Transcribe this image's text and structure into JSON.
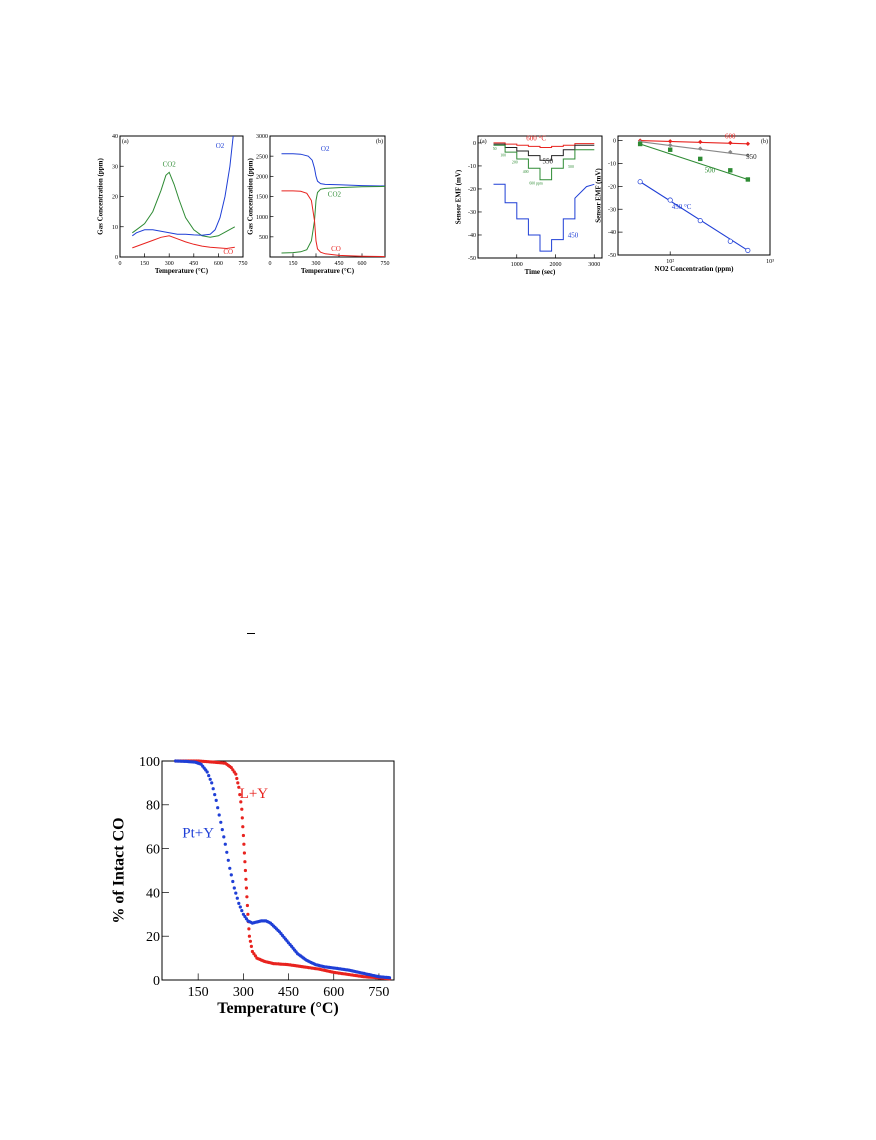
{
  "colors": {
    "red": "#e8231f",
    "blue": "#1f3fd6",
    "green": "#2e8b34",
    "black": "#222222",
    "gray": "#888888"
  },
  "chart_data": [
    {
      "id": "fig1a",
      "panel_label": "(a)",
      "type": "line",
      "xlabel": "Temperature (°C)",
      "ylabel": "Gas Concentration (ppm)",
      "xlim": [
        0,
        750
      ],
      "ylim": [
        0,
        40
      ],
      "xticks": [
        0,
        150,
        300,
        450,
        600,
        750
      ],
      "yticks": [
        0,
        10,
        20,
        30,
        40
      ],
      "series": [
        {
          "name": "CO2",
          "color": "#2e8b34",
          "x": [
            75,
            100,
            150,
            200,
            250,
            280,
            300,
            330,
            360,
            400,
            450,
            500,
            550,
            600,
            650,
            700
          ],
          "y": [
            8,
            9,
            11,
            15,
            22,
            27,
            28,
            24,
            19,
            13,
            9,
            7,
            6.5,
            7,
            8.5,
            10
          ]
        },
        {
          "name": "O2",
          "color": "#1f3fd6",
          "x": [
            75,
            100,
            150,
            200,
            250,
            300,
            350,
            400,
            450,
            500,
            550,
            580,
            610,
            640,
            670,
            690
          ],
          "y": [
            7,
            8,
            9,
            9,
            8.5,
            8,
            7.5,
            7.5,
            7.3,
            7.2,
            7.5,
            9,
            13,
            20,
            30,
            40
          ]
        },
        {
          "name": "CO",
          "color": "#e8231f",
          "x": [
            75,
            100,
            150,
            200,
            250,
            300,
            350,
            400,
            450,
            500,
            550,
            600,
            650,
            700
          ],
          "y": [
            3,
            3.5,
            4.5,
            5.5,
            6.5,
            7,
            6,
            5,
            4.2,
            3.6,
            3.2,
            3,
            2.8,
            3.2
          ]
        }
      ],
      "annotations": [
        {
          "text": "CO2",
          "x": 300,
          "y": 30,
          "color": "#2e8b34"
        },
        {
          "text": "O2",
          "x": 610,
          "y": 36,
          "color": "#1f3fd6"
        },
        {
          "text": "CO",
          "x": 660,
          "y": 1,
          "color": "#e8231f"
        }
      ]
    },
    {
      "id": "fig1b",
      "panel_label": "(b)",
      "type": "line",
      "xlabel": "Temperature (°C)",
      "ylabel": "Gas Concentration (ppm)",
      "xlim": [
        0,
        750
      ],
      "ylim": [
        0,
        3000
      ],
      "xticks": [
        0,
        150,
        300,
        450,
        600,
        750
      ],
      "yticks": [
        500,
        1000,
        1500,
        2000,
        2500,
        3000
      ],
      "series": [
        {
          "name": "O2",
          "color": "#1f3fd6",
          "x": [
            75,
            150,
            200,
            250,
            275,
            290,
            300,
            310,
            330,
            360,
            450,
            600,
            750
          ],
          "y": [
            2560,
            2560,
            2550,
            2500,
            2400,
            2200,
            2000,
            1880,
            1820,
            1800,
            1790,
            1770,
            1760
          ]
        },
        {
          "name": "CO2",
          "color": "#2e8b34",
          "x": [
            75,
            150,
            200,
            240,
            270,
            290,
            300,
            310,
            330,
            360,
            450,
            600,
            750
          ],
          "y": [
            100,
            110,
            130,
            180,
            400,
            900,
            1400,
            1600,
            1680,
            1700,
            1720,
            1740,
            1750
          ]
        },
        {
          "name": "CO",
          "color": "#e8231f",
          "x": [
            75,
            150,
            200,
            240,
            270,
            290,
            300,
            310,
            330,
            360,
            450,
            600,
            750
          ],
          "y": [
            1640,
            1640,
            1630,
            1580,
            1400,
            900,
            400,
            200,
            120,
            80,
            40,
            20,
            10
          ]
        }
      ],
      "annotations": [
        {
          "text": "O2",
          "x": 360,
          "y": 2630,
          "color": "#1f3fd6"
        },
        {
          "text": "CO2",
          "x": 420,
          "y": 1500,
          "color": "#2e8b34"
        },
        {
          "text": "CO",
          "x": 430,
          "y": 150,
          "color": "#e8231f"
        }
      ]
    },
    {
      "id": "fig2a",
      "panel_label": "(a)",
      "type": "line",
      "xlabel": "Time (sec)",
      "ylabel": "Sensor EMF (mV)",
      "xlim": [
        0,
        3200
      ],
      "ylim": [
        -50,
        3
      ],
      "xticks": [
        1000,
        2000,
        3000
      ],
      "yticks": [
        0,
        -10,
        -20,
        -30,
        -40,
        -50
      ],
      "series": [
        {
          "name": "600 °C",
          "color": "#e8231f",
          "x": [
            400,
            700,
            700,
            1000,
            1000,
            1300,
            1300,
            1600,
            1600,
            1900,
            1900,
            2200,
            2200,
            2500,
            2500,
            3000
          ],
          "y": [
            0,
            0,
            -0.5,
            -0.5,
            -1,
            -1,
            -1.5,
            -1.5,
            -2,
            -2,
            -1.5,
            -1.5,
            -1,
            -1,
            -0.3,
            -0.3
          ]
        },
        {
          "name": "550",
          "color": "#222222",
          "x": [
            400,
            700,
            700,
            1000,
            1000,
            1300,
            1300,
            1600,
            1600,
            1900,
            1900,
            2200,
            2200,
            2500,
            2500,
            3000
          ],
          "y": [
            -0.5,
            -0.5,
            -2,
            -2,
            -3.5,
            -3.5,
            -5.5,
            -5.5,
            -7.5,
            -7.5,
            -5.5,
            -5.5,
            -3,
            -3,
            -1,
            -1
          ]
        },
        {
          "name": "500",
          "color": "#2e8b34",
          "x": [
            400,
            700,
            700,
            1000,
            1000,
            1300,
            1300,
            1600,
            1600,
            1900,
            1900,
            2200,
            2200,
            2500,
            2500,
            3000
          ],
          "y": [
            -1,
            -1,
            -4,
            -4,
            -7,
            -7,
            -11,
            -11,
            -16,
            -16,
            -11,
            -11,
            -7,
            -7,
            -3,
            -3
          ]
        },
        {
          "name": "450",
          "color": "#1f3fd6",
          "x": [
            400,
            700,
            700,
            1000,
            1000,
            1300,
            1300,
            1600,
            1600,
            1900,
            1900,
            2200,
            2200,
            2500,
            2500,
            2800,
            3000
          ],
          "y": [
            -18,
            -18,
            -26,
            -26,
            -33,
            -33,
            -40,
            -40,
            -47,
            -47,
            -42,
            -42,
            -33,
            -33,
            -24,
            -19,
            -18
          ]
        }
      ],
      "annotations": [
        {
          "text": "600 °C",
          "x": 1500,
          "y": 1,
          "color": "#e8231f"
        },
        {
          "text": "550",
          "x": 1800,
          "y": -9,
          "color": "#222222"
        },
        {
          "text": "500",
          "x": 2400,
          "y": -11,
          "color": "#2e8b34"
        },
        {
          "text": "450",
          "x": 2450,
          "y": -41,
          "color": "#1f3fd6"
        },
        {
          "text": "50",
          "x": 430,
          "y": -3,
          "color": "#2e8b34"
        },
        {
          "text": "100",
          "x": 650,
          "y": -6,
          "color": "#2e8b34"
        },
        {
          "text": "200",
          "x": 950,
          "y": -9,
          "color": "#2e8b34"
        },
        {
          "text": "400",
          "x": 1230,
          "y": -13,
          "color": "#2e8b34"
        },
        {
          "text": "600 ppm",
          "x": 1500,
          "y": -18,
          "color": "#2e8b34"
        }
      ]
    },
    {
      "id": "fig2b",
      "panel_label": "(b)",
      "type": "scatter",
      "xlabel": "NO2 Concentration (ppm)",
      "ylabel": "Sensor EMF (mV)",
      "xscale": "log",
      "xlim": [
        30,
        1000
      ],
      "ylim": [
        -50,
        2
      ],
      "xticks": [
        100,
        1000
      ],
      "xtick_labels": [
        "10²",
        "10³"
      ],
      "yticks": [
        0,
        -10,
        -20,
        -30,
        -40,
        -50
      ],
      "series": [
        {
          "name": "600",
          "color": "#e8231f",
          "marker": "diamond",
          "x": [
            50,
            100,
            200,
            400,
            600
          ],
          "y": [
            0,
            -0.3,
            -0.6,
            -1,
            -1.4
          ]
        },
        {
          "name": "550",
          "color": "#888888",
          "marker": "diamond",
          "x": [
            50,
            100,
            200,
            400,
            600
          ],
          "y": [
            -0.5,
            -2,
            -3.5,
            -5,
            -6.5
          ]
        },
        {
          "name": "500",
          "color": "#2e8b34",
          "marker": "square",
          "x": [
            50,
            100,
            200,
            400,
            600
          ],
          "y": [
            -1.5,
            -4,
            -8,
            -13,
            -17
          ]
        },
        {
          "name": "450 °C",
          "color": "#1f3fd6",
          "marker": "circle",
          "x": [
            50,
            100,
            200,
            400,
            600
          ],
          "y": [
            -18,
            -26,
            -35,
            -44,
            -48
          ]
        }
      ],
      "annotations": [
        {
          "text": "600",
          "x": 400,
          "y": 1,
          "color": "#e8231f"
        },
        {
          "text": "550",
          "x": 650,
          "y": -8,
          "color": "#222222"
        },
        {
          "text": "500",
          "x": 250,
          "y": -14,
          "color": "#2e8b34"
        },
        {
          "text": "450 °C",
          "x": 130,
          "y": -30,
          "color": "#1f3fd6"
        }
      ]
    },
    {
      "id": "fig3",
      "panel_label": "",
      "type": "scatter",
      "xlabel": "Temperature (°C)",
      "ylabel": "% of Intact CO",
      "xlim": [
        30,
        800
      ],
      "ylim": [
        0,
        100
      ],
      "xticks": [
        150,
        300,
        450,
        600,
        750
      ],
      "yticks": [
        0,
        20,
        40,
        60,
        80,
        100
      ],
      "series": [
        {
          "name": "L+Y",
          "color": "#e8231f",
          "x": [
            75,
            150,
            200,
            240,
            260,
            275,
            285,
            295,
            300,
            305,
            310,
            315,
            320,
            330,
            345,
            370,
            400,
            450,
            500,
            550,
            600,
            650,
            700,
            750,
            790
          ],
          "y": [
            100,
            100,
            99.5,
            99,
            97,
            94,
            88,
            78,
            66,
            54,
            42,
            30,
            20,
            13,
            10,
            8.5,
            7.5,
            7,
            6,
            5,
            3.5,
            2.5,
            1.5,
            1,
            0.5
          ]
        },
        {
          "name": "Pt+Y",
          "color": "#1f3fd6",
          "x": [
            75,
            110,
            140,
            160,
            180,
            195,
            210,
            225,
            240,
            255,
            270,
            285,
            300,
            315,
            330,
            345,
            360,
            375,
            390,
            420,
            450,
            480,
            510,
            540,
            570,
            600,
            650,
            700,
            750,
            790
          ],
          "y": [
            100,
            99.8,
            99.5,
            98.5,
            95,
            90,
            82,
            72,
            62,
            51,
            42,
            35,
            30,
            27,
            26,
            26.5,
            27,
            27,
            26,
            22,
            17,
            12,
            9,
            7,
            6,
            5.5,
            4.5,
            3,
            1.5,
            1
          ]
        }
      ],
      "annotations": [
        {
          "text": "L+Y",
          "x": 335,
          "y": 83,
          "color": "#e8231f"
        },
        {
          "text": "Pt+Y",
          "x": 150,
          "y": 65,
          "color": "#1f3fd6"
        }
      ]
    }
  ]
}
